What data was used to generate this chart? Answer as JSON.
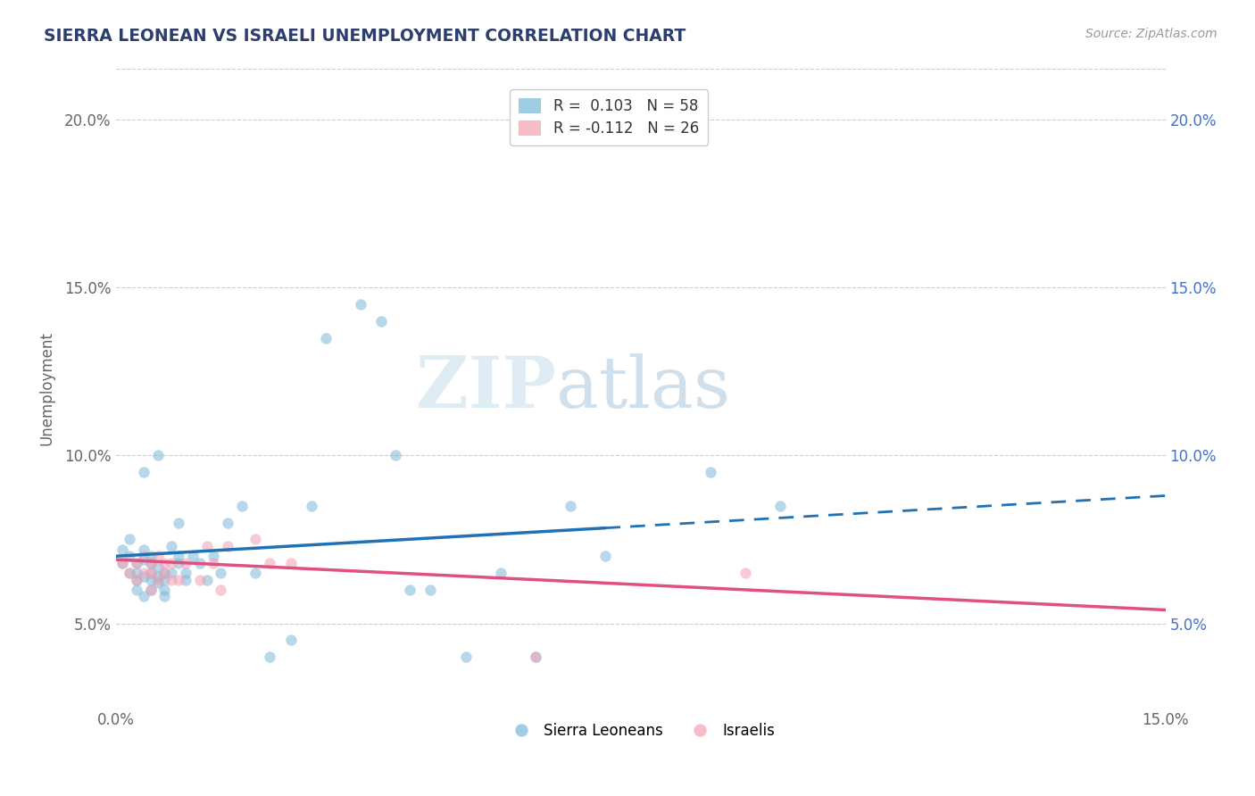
{
  "title": "SIERRA LEONEAN VS ISRAELI UNEMPLOYMENT CORRELATION CHART",
  "source": "Source: ZipAtlas.com",
  "ylabel": "Unemployment",
  "x_min": 0.0,
  "x_max": 0.15,
  "y_min": 0.025,
  "y_max": 0.215,
  "x_ticks": [
    0.0,
    0.05,
    0.1,
    0.15
  ],
  "x_tick_labels": [
    "0.0%",
    "",
    "",
    "15.0%"
  ],
  "y_ticks": [
    0.05,
    0.1,
    0.15,
    0.2
  ],
  "y_tick_labels": [
    "5.0%",
    "10.0%",
    "15.0%",
    "20.0%"
  ],
  "sl_color": "#7ab8d9",
  "israeli_color": "#f4a0b0",
  "sl_line_color": "#2171b5",
  "israeli_line_color": "#e05080",
  "title_color": "#2c3e6e",
  "axis_label_color": "#666666",
  "watermark_zip": "ZIP",
  "watermark_atlas": "atlas",
  "background_color": "#ffffff",
  "grid_color": "#cccccc",
  "sl_legend_color": "#7ab8d9",
  "isr_legend_color": "#f4a0b0",
  "sierra_leonean_x": [
    0.001,
    0.001,
    0.002,
    0.002,
    0.002,
    0.003,
    0.003,
    0.003,
    0.003,
    0.004,
    0.004,
    0.004,
    0.004,
    0.004,
    0.005,
    0.005,
    0.005,
    0.005,
    0.005,
    0.006,
    0.006,
    0.006,
    0.006,
    0.007,
    0.007,
    0.007,
    0.007,
    0.008,
    0.008,
    0.009,
    0.009,
    0.009,
    0.01,
    0.01,
    0.011,
    0.012,
    0.013,
    0.014,
    0.015,
    0.016,
    0.018,
    0.02,
    0.022,
    0.025,
    0.028,
    0.03,
    0.035,
    0.038,
    0.04,
    0.042,
    0.045,
    0.05,
    0.055,
    0.06,
    0.065,
    0.07,
    0.085,
    0.095
  ],
  "sierra_leonean_y": [
    0.072,
    0.068,
    0.075,
    0.07,
    0.065,
    0.068,
    0.063,
    0.06,
    0.065,
    0.069,
    0.064,
    0.072,
    0.058,
    0.095,
    0.063,
    0.06,
    0.065,
    0.068,
    0.07,
    0.064,
    0.067,
    0.062,
    0.1,
    0.058,
    0.06,
    0.063,
    0.065,
    0.065,
    0.073,
    0.068,
    0.07,
    0.08,
    0.063,
    0.065,
    0.07,
    0.068,
    0.063,
    0.07,
    0.065,
    0.08,
    0.085,
    0.065,
    0.04,
    0.045,
    0.085,
    0.135,
    0.145,
    0.14,
    0.1,
    0.06,
    0.06,
    0.04,
    0.065,
    0.04,
    0.085,
    0.07,
    0.095,
    0.085
  ],
  "israeli_x": [
    0.001,
    0.002,
    0.003,
    0.003,
    0.004,
    0.004,
    0.005,
    0.005,
    0.005,
    0.006,
    0.006,
    0.007,
    0.007,
    0.008,
    0.008,
    0.009,
    0.01,
    0.012,
    0.013,
    0.014,
    0.015,
    0.016,
    0.02,
    0.022,
    0.025,
    0.06,
    0.09
  ],
  "israeli_y": [
    0.068,
    0.065,
    0.068,
    0.063,
    0.07,
    0.065,
    0.06,
    0.065,
    0.068,
    0.063,
    0.07,
    0.065,
    0.068,
    0.063,
    0.068,
    0.063,
    0.068,
    0.063,
    0.073,
    0.068,
    0.06,
    0.073,
    0.075,
    0.068,
    0.068,
    0.04,
    0.065
  ],
  "sl_line_x0": 0.0,
  "sl_line_x1": 0.15,
  "sl_line_y0": 0.07,
  "sl_line_y1": 0.088,
  "sl_line_solid_x1": 0.07,
  "isr_line_x0": 0.0,
  "isr_line_x1": 0.15,
  "isr_line_y0": 0.069,
  "isr_line_y1": 0.054
}
